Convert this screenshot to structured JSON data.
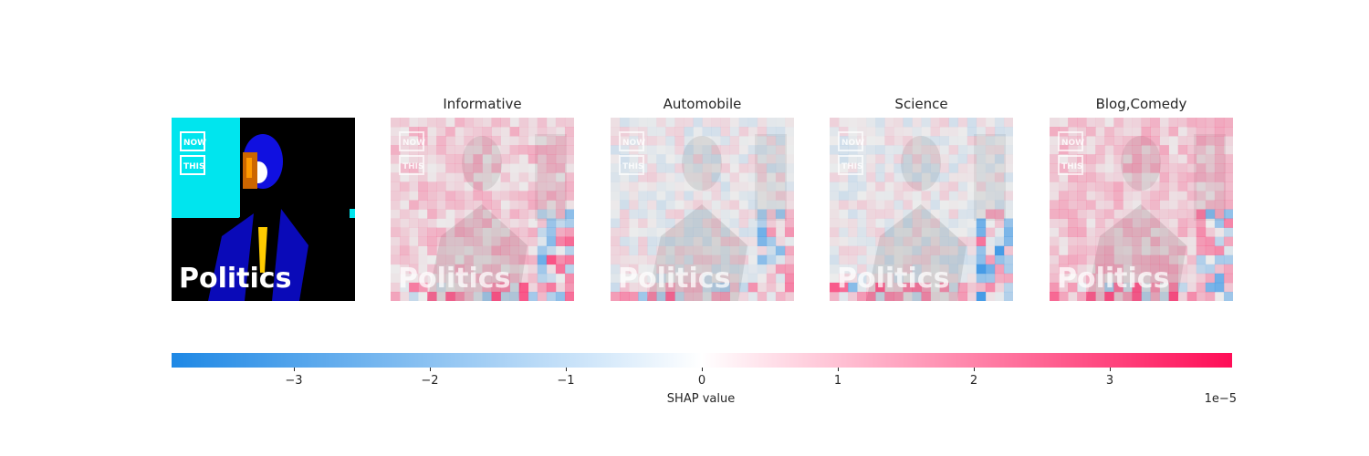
{
  "chart_data": {
    "type": "heatmap",
    "original_image": {
      "overlay_texts": [
        "NOW",
        "THIS",
        "Politics"
      ]
    },
    "panels": [
      {
        "title": "Informative"
      },
      {
        "title": "Automobile"
      },
      {
        "title": "Science"
      },
      {
        "title": "Blog,Comedy"
      }
    ],
    "colorbar": {
      "label": "SHAP value",
      "offset_text": "1e−5",
      "range": [
        -3.9,
        3.9
      ],
      "ticks": [
        {
          "value": -3,
          "label": "−3"
        },
        {
          "value": -2,
          "label": "−2"
        },
        {
          "value": -1,
          "label": "−1"
        },
        {
          "value": 0,
          "label": "0"
        },
        {
          "value": 1,
          "label": "1"
        },
        {
          "value": 2,
          "label": "2"
        },
        {
          "value": 3,
          "label": "3"
        }
      ],
      "colors": {
        "negative": "#1e88e5",
        "zero": "#ffffff",
        "positive": "#ff0d57"
      }
    }
  }
}
